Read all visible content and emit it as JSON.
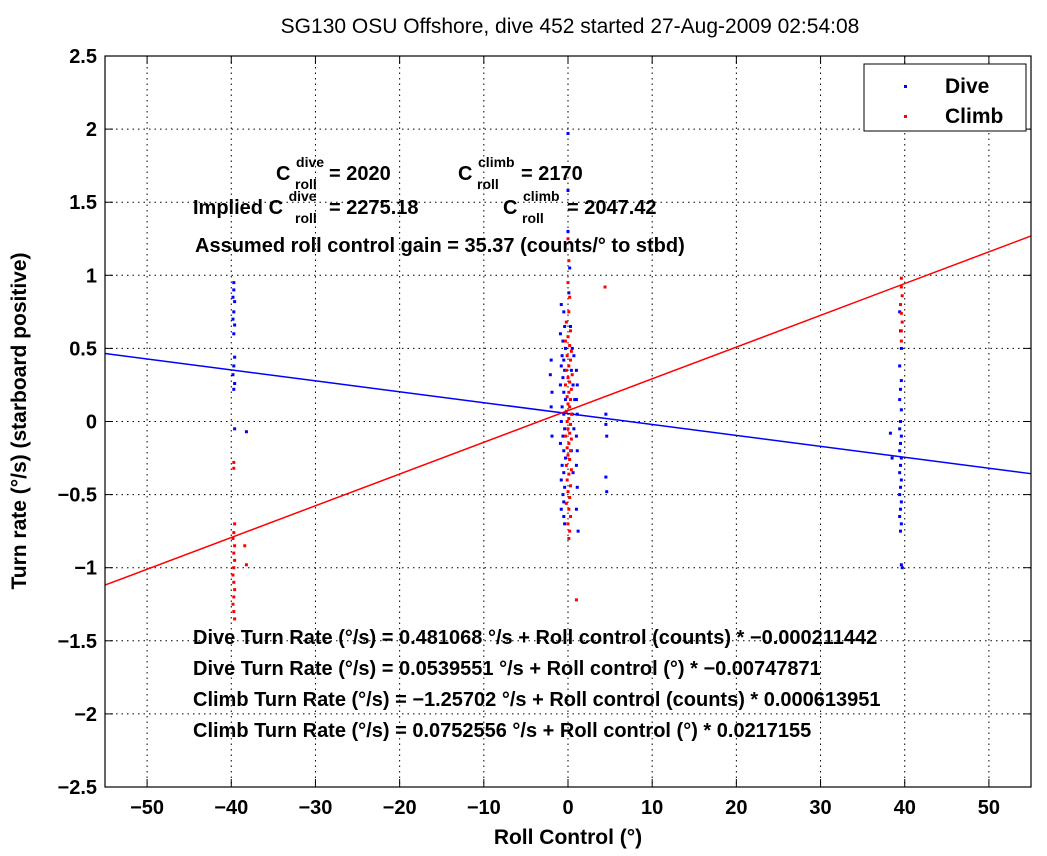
{
  "chart_data": {
    "type": "scatter",
    "title": "SG130 OSU Offshore, dive 452 started 27-Aug-2009 02:54:08",
    "xlabel": "Roll Control (°)",
    "ylabel": "Turn rate (°/s) (starboard positive)",
    "xlim": [
      -55,
      55
    ],
    "ylim": [
      -2.5,
      2.5
    ],
    "x_ticks": [
      -50,
      -40,
      -30,
      -20,
      -10,
      0,
      10,
      20,
      30,
      40,
      50
    ],
    "y_ticks": [
      2.5,
      2,
      1.5,
      1,
      0.5,
      0,
      -0.5,
      -1,
      -1.5,
      -2,
      -2.5
    ],
    "x_tick_labels": [
      "−50",
      "−40",
      "−30",
      "−20",
      "−10",
      "0",
      "10",
      "20",
      "30",
      "40",
      "50"
    ],
    "y_tick_labels": [
      "2.5",
      "2",
      "1.5",
      "1",
      "0.5",
      "0",
      "−0.5",
      "−1",
      "−1.5",
      "−2",
      "−2.5"
    ],
    "grid": true,
    "legend_position": "top-right",
    "colors": {
      "dive": "#0000ff",
      "climb": "#ff0000"
    },
    "series": [
      {
        "name": "Dive",
        "color": "#0000ff",
        "points": [
          [
            -39.7,
            0.95
          ],
          [
            -39.7,
            0.9
          ],
          [
            -39.8,
            0.85
          ],
          [
            -39.6,
            0.82
          ],
          [
            -39.7,
            0.75
          ],
          [
            -39.8,
            0.7
          ],
          [
            -39.6,
            0.66
          ],
          [
            -39.7,
            0.6
          ],
          [
            -39.6,
            0.44
          ],
          [
            -39.7,
            0.38
          ],
          [
            -39.8,
            0.32
          ],
          [
            -39.6,
            0.26
          ],
          [
            -39.7,
            0.22
          ],
          [
            -39.6,
            -0.05
          ],
          [
            -38.2,
            -0.07
          ],
          [
            -0.8,
            0.8
          ],
          [
            -0.5,
            0.75
          ],
          [
            -0.4,
            0.65
          ],
          [
            -0.9,
            0.6
          ],
          [
            -0.6,
            0.55
          ],
          [
            -0.3,
            0.5
          ],
          [
            -0.7,
            0.45
          ],
          [
            -0.5,
            0.42
          ],
          [
            -0.8,
            0.38
          ],
          [
            -0.4,
            0.35
          ],
          [
            -0.6,
            0.3
          ],
          [
            -0.9,
            0.25
          ],
          [
            -0.5,
            0.2
          ],
          [
            -0.3,
            0.15
          ],
          [
            -0.7,
            0.1
          ],
          [
            -0.5,
            0.05
          ],
          [
            -0.8,
            0.0
          ],
          [
            -0.4,
            -0.05
          ],
          [
            -0.6,
            -0.1
          ],
          [
            -0.9,
            -0.15
          ],
          [
            -0.5,
            -0.2
          ],
          [
            -0.3,
            -0.25
          ],
          [
            -0.7,
            -0.3
          ],
          [
            -0.5,
            -0.35
          ],
          [
            -0.8,
            -0.4
          ],
          [
            -0.4,
            -0.45
          ],
          [
            -0.6,
            -0.5
          ],
          [
            -0.5,
            -0.55
          ],
          [
            -0.8,
            -0.6
          ],
          [
            -0.5,
            -0.65
          ],
          [
            -0.4,
            -0.7
          ],
          [
            0.3,
            0.65
          ],
          [
            0.5,
            0.5
          ],
          [
            0.7,
            0.45
          ],
          [
            0.4,
            0.35
          ],
          [
            0.6,
            0.25
          ],
          [
            0.8,
            0.15
          ],
          [
            0.5,
            0.05
          ],
          [
            0.7,
            -0.05
          ],
          [
            0.4,
            -0.2
          ],
          [
            0.6,
            -0.35
          ],
          [
            1.0,
            0.35
          ],
          [
            1.1,
            0.25
          ],
          [
            1.0,
            0.15
          ],
          [
            1.1,
            0.05
          ],
          [
            1.0,
            -0.1
          ],
          [
            1.1,
            -0.2
          ],
          [
            1.0,
            -0.3
          ],
          [
            1.1,
            -0.45
          ],
          [
            1.0,
            -0.6
          ],
          [
            1.2,
            -0.75
          ],
          [
            -2.0,
            0.42
          ],
          [
            -2.1,
            0.32
          ],
          [
            -1.9,
            0.2
          ],
          [
            -2.0,
            0.1
          ],
          [
            -1.9,
            -0.1
          ],
          [
            0.0,
            1.97
          ],
          [
            0.0,
            1.58
          ],
          [
            0.0,
            1.3
          ],
          [
            0.2,
            1.05
          ],
          [
            0.1,
            0.88
          ],
          [
            4.5,
            0.05
          ],
          [
            4.5,
            -0.02
          ],
          [
            4.6,
            -0.1
          ],
          [
            4.5,
            -0.38
          ],
          [
            4.6,
            -0.48
          ],
          [
            38.3,
            -0.08
          ],
          [
            38.5,
            -0.25
          ],
          [
            39.4,
            0.75
          ],
          [
            39.5,
            0.62
          ],
          [
            39.6,
            0.5
          ],
          [
            39.4,
            0.38
          ],
          [
            39.6,
            0.28
          ],
          [
            39.5,
            0.22
          ],
          [
            39.4,
            0.15
          ],
          [
            39.6,
            0.08
          ],
          [
            39.5,
            0.0
          ],
          [
            39.4,
            -0.05
          ],
          [
            39.6,
            -0.1
          ],
          [
            39.5,
            -0.15
          ],
          [
            39.4,
            -0.2
          ],
          [
            39.6,
            -0.25
          ],
          [
            39.5,
            -0.3
          ],
          [
            39.4,
            -0.35
          ],
          [
            39.6,
            -0.4
          ],
          [
            39.5,
            -0.45
          ],
          [
            39.4,
            -0.5
          ],
          [
            39.6,
            -0.55
          ],
          [
            39.5,
            -0.6
          ],
          [
            39.4,
            -0.65
          ],
          [
            39.6,
            -0.7
          ],
          [
            39.5,
            -0.75
          ],
          [
            39.6,
            -0.98
          ],
          [
            39.7,
            -1.0
          ]
        ]
      },
      {
        "name": "Climb",
        "color": "#ff0000",
        "points": [
          [
            -39.7,
            -0.28
          ],
          [
            -39.7,
            -0.32
          ],
          [
            -39.6,
            -0.7
          ],
          [
            -39.7,
            -0.76
          ],
          [
            -39.8,
            -0.8
          ],
          [
            -39.6,
            -0.85
          ],
          [
            -39.7,
            -0.9
          ],
          [
            -39.6,
            -0.95
          ],
          [
            -39.7,
            -1.0
          ],
          [
            -39.8,
            -1.05
          ],
          [
            -39.7,
            -1.1
          ],
          [
            -39.6,
            -1.15
          ],
          [
            -39.7,
            -1.2
          ],
          [
            -39.8,
            -1.25
          ],
          [
            -39.7,
            -1.3
          ],
          [
            -39.6,
            -1.35
          ],
          [
            -38.4,
            -0.85
          ],
          [
            -38.2,
            -0.98
          ],
          [
            0.0,
            1.25
          ],
          [
            0.1,
            1.1
          ],
          [
            0.0,
            0.95
          ],
          [
            0.2,
            0.85
          ],
          [
            0.1,
            0.75
          ],
          [
            -0.2,
            0.68
          ],
          [
            0.3,
            0.62
          ],
          [
            0.0,
            0.58
          ],
          [
            -0.3,
            0.55
          ],
          [
            0.2,
            0.52
          ],
          [
            0.4,
            0.48
          ],
          [
            -0.1,
            0.45
          ],
          [
            0.3,
            0.42
          ],
          [
            0.1,
            0.38
          ],
          [
            -0.2,
            0.35
          ],
          [
            0.5,
            0.32
          ],
          [
            0.0,
            0.3
          ],
          [
            0.2,
            0.27
          ],
          [
            -0.3,
            0.25
          ],
          [
            0.4,
            0.22
          ],
          [
            0.1,
            0.2
          ],
          [
            -0.1,
            0.17
          ],
          [
            0.3,
            0.15
          ],
          [
            0.0,
            0.12
          ],
          [
            0.2,
            0.1
          ],
          [
            -0.2,
            0.07
          ],
          [
            0.4,
            0.05
          ],
          [
            0.1,
            0.02
          ],
          [
            -0.1,
            0.0
          ],
          [
            0.3,
            -0.02
          ],
          [
            0.0,
            -0.05
          ],
          [
            0.2,
            -0.08
          ],
          [
            -0.3,
            -0.1
          ],
          [
            0.4,
            -0.12
          ],
          [
            0.1,
            -0.15
          ],
          [
            -0.1,
            -0.18
          ],
          [
            0.3,
            -0.2
          ],
          [
            0.0,
            -0.23
          ],
          [
            0.2,
            -0.26
          ],
          [
            -0.2,
            -0.3
          ],
          [
            0.4,
            -0.33
          ],
          [
            0.1,
            -0.36
          ],
          [
            -0.1,
            -0.4
          ],
          [
            0.3,
            -0.44
          ],
          [
            0.0,
            -0.48
          ],
          [
            0.2,
            -0.52
          ],
          [
            -0.2,
            -0.56
          ],
          [
            0.1,
            -0.6
          ],
          [
            0.3,
            -0.65
          ],
          [
            0.0,
            -0.7
          ],
          [
            0.2,
            -0.75
          ],
          [
            0.1,
            -0.8
          ],
          [
            1.0,
            -1.22
          ],
          [
            4.4,
            0.92
          ],
          [
            39.6,
            0.98
          ],
          [
            39.6,
            0.92
          ],
          [
            39.7,
            0.86
          ],
          [
            39.5,
            0.8
          ],
          [
            39.6,
            0.74
          ],
          [
            39.7,
            0.68
          ],
          [
            39.6,
            0.62
          ],
          [
            39.6,
            0.55
          ]
        ]
      },
      {
        "name": "Dive fit",
        "color": "#0000ff",
        "line": [
          [
            -55,
            0.465
          ],
          [
            55,
            -0.357
          ]
        ]
      },
      {
        "name": "Climb fit",
        "color": "#ff0000",
        "line": [
          [
            -55,
            -1.119
          ],
          [
            55,
            1.269
          ]
        ]
      }
    ],
    "legend": [
      {
        "label": "Dive",
        "color": "#0000ff"
      },
      {
        "label": "Climb",
        "color": "#ff0000"
      }
    ],
    "annotations": {
      "c_roll_dive_label": "C",
      "c_roll_dive_sup": "dive",
      "c_roll_dive_sub": "roll",
      "c_roll_dive_val": " = 2020",
      "c_roll_climb_label": "C",
      "c_roll_climb_sup": "climb",
      "c_roll_climb_sub": "roll",
      "c_roll_climb_val": " = 2170",
      "implied_prefix": "Implied C",
      "implied_dive_sup": "dive",
      "implied_dive_sub": "roll",
      "implied_dive_val": " = 2275.18",
      "implied_climb_label": "C",
      "implied_climb_sup": "climb",
      "implied_climb_sub": "roll",
      "implied_climb_val": " = 2047.42",
      "gain": "Assumed roll control gain = 35.37 (counts/° to stbd)",
      "eq1": "Dive Turn Rate (°/s) = 0.481068 °/s + Roll control (counts) * −0.000211442",
      "eq2": "Dive Turn Rate (°/s) = 0.0539551 °/s + Roll control (°) * −0.00747871",
      "eq3": "Climb Turn Rate (°/s) = −1.25702 °/s + Roll control (counts) * 0.000613951",
      "eq4": "Climb Turn Rate (°/s) = 0.0752556 °/s + Roll control (°) * 0.0217155"
    }
  }
}
